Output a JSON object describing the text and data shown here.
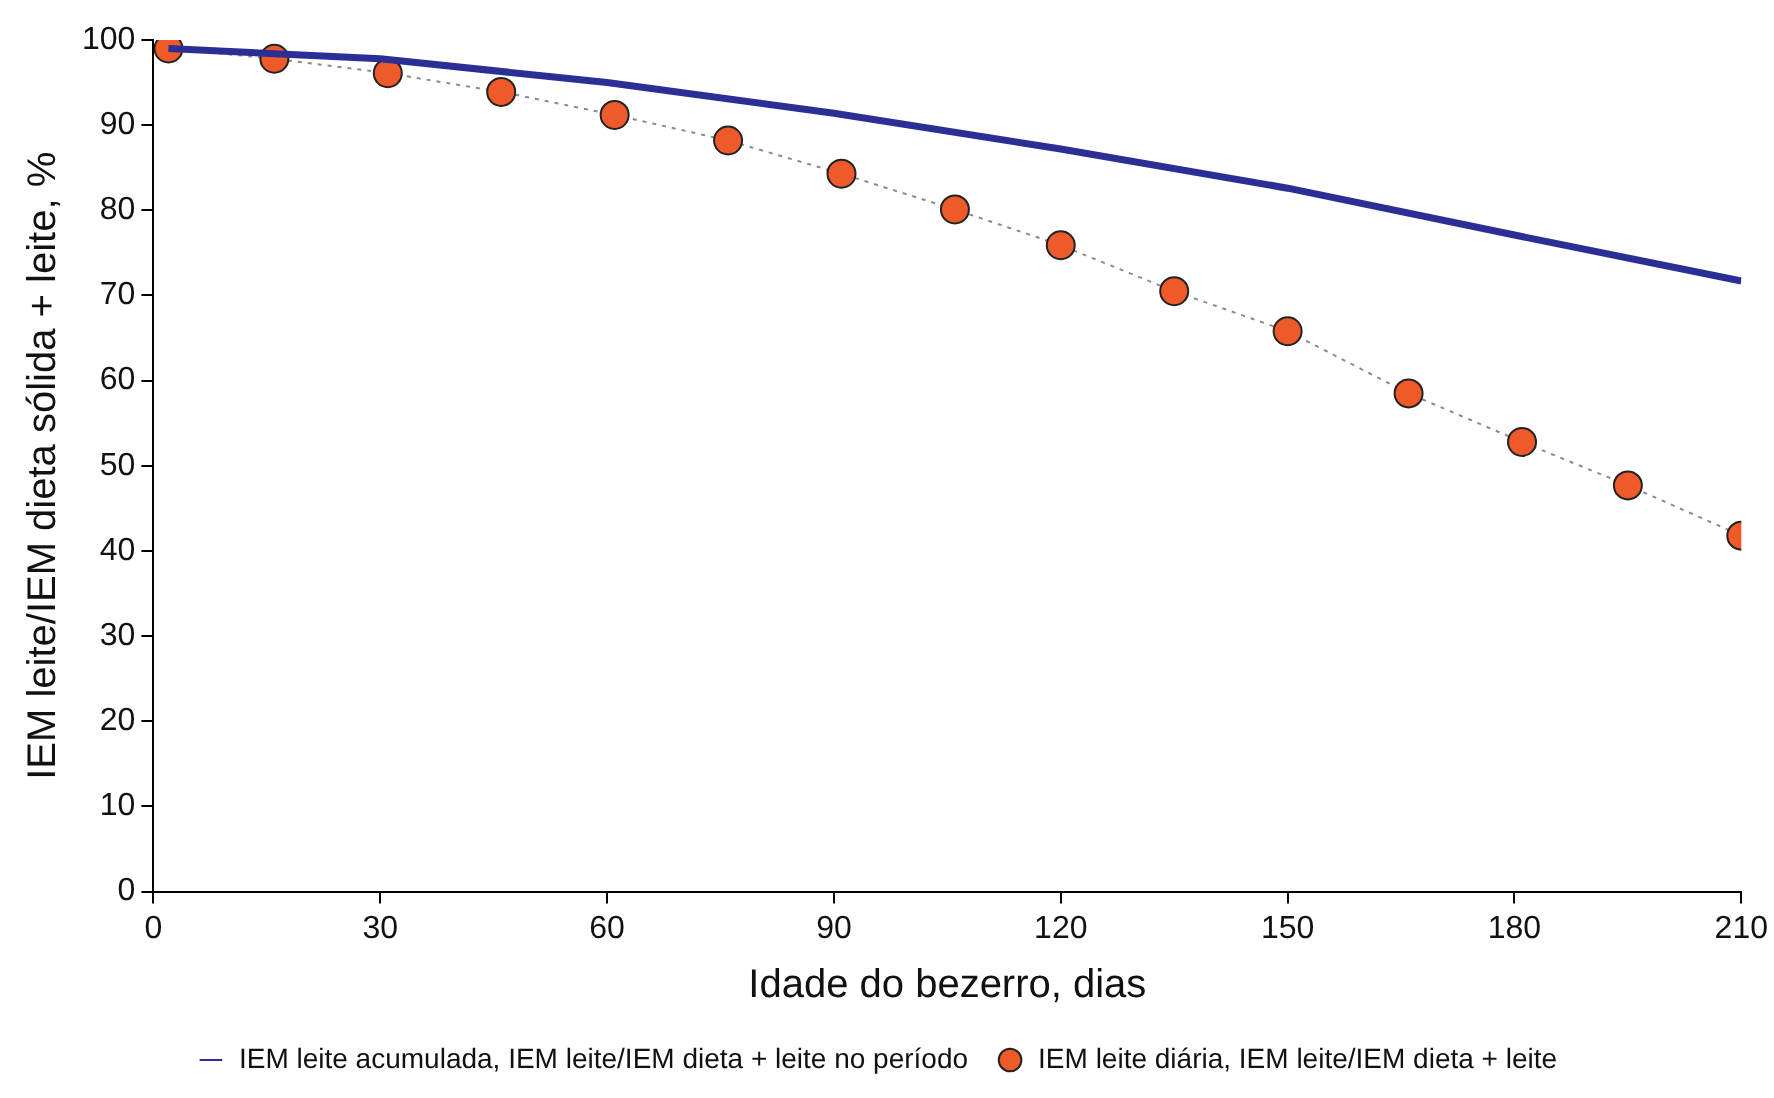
{
  "chart_data": {
    "type": "line",
    "xlabel": "Idade do bezerro, dias",
    "ylabel": "IEM leite/IEM dieta sólida + leite, %",
    "xlim": [
      0,
      210
    ],
    "xticks": [
      0,
      30,
      60,
      90,
      120,
      150,
      180,
      210
    ],
    "ylim": [
      0,
      100
    ],
    "yticks": [
      0,
      10,
      20,
      30,
      40,
      50,
      60,
      70,
      80,
      90,
      100
    ],
    "grid": false,
    "legend": "bottom",
    "series": [
      {
        "name": "IEM leite acumulada, IEM leite/IEM dieta + leite no período",
        "color": "#2b2f95",
        "marker": "none",
        "line_style": "solid",
        "x": [
          2,
          30,
          60,
          90,
          120,
          150,
          180,
          210
        ],
        "values": [
          99,
          97.8,
          95,
          91.4,
          87.2,
          82.6,
          77.1,
          71.7
        ]
      },
      {
        "name": "IEM leite diária, IEM leite/IEM dieta + leite",
        "color": "#ee5a2a",
        "marker": "circle",
        "line_style": "dotted",
        "x": [
          2,
          16,
          31,
          46,
          61,
          76,
          91,
          106,
          120,
          135,
          150,
          166,
          181,
          195,
          210
        ],
        "values": [
          99,
          97.8,
          96.1,
          93.9,
          91.2,
          88.2,
          84.3,
          80.1,
          75.9,
          70.5,
          65.8,
          58.5,
          52.8,
          47.7,
          41.8
        ]
      }
    ]
  }
}
